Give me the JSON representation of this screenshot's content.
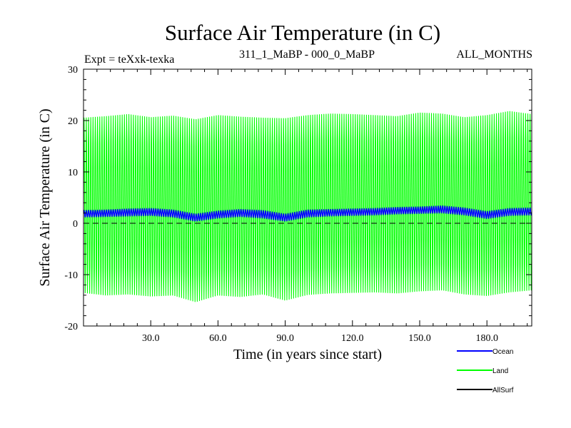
{
  "chart_data": {
    "type": "line",
    "title": "Surface Air Temperature (in C)",
    "subtitle_left": "Expt = teXxk-texka",
    "subtitle_center": "311_1_MaBP - 000_0_MaBP",
    "subtitle_right": "ALL_MONTHS",
    "xlabel": "Time (in years since start)",
    "ylabel": "Surface Air Temperature (in C)",
    "xlim": [
      0,
      200
    ],
    "ylim": [
      -20,
      30
    ],
    "x_ticks": [
      30,
      60,
      90,
      120,
      150,
      180
    ],
    "x_tick_labels": [
      "30.0",
      "60.0",
      "90.0",
      "120.0",
      "150.0",
      "180.0"
    ],
    "y_ticks": [
      -20,
      -10,
      0,
      10,
      20,
      30
    ],
    "y_tick_labels": [
      "-20",
      "-10",
      "0",
      "10",
      "20",
      "30"
    ],
    "reference_line": {
      "y": 0,
      "style": "dashed",
      "color": "#000000"
    },
    "series": [
      {
        "name": "Ocean",
        "color": "#0000ff",
        "kind": "seasonal-band",
        "x_start": 0,
        "x_end": 200,
        "cycle_years": 1,
        "envelope_x": [
          0,
          10,
          20,
          30,
          40,
          50,
          60,
          70,
          80,
          90,
          100,
          110,
          120,
          130,
          140,
          150,
          160,
          170,
          180,
          190,
          200
        ],
        "envelope_max": [
          2.5,
          2.6,
          2.8,
          2.9,
          2.6,
          1.8,
          2.4,
          2.7,
          2.5,
          1.8,
          2.6,
          2.7,
          2.8,
          2.9,
          3.1,
          3.2,
          3.4,
          3.0,
          2.3,
          2.9,
          3.0
        ],
        "envelope_min": [
          1.2,
          1.3,
          1.4,
          1.5,
          1.2,
          0.4,
          1.0,
          1.3,
          1.0,
          0.4,
          1.2,
          1.4,
          1.5,
          1.6,
          1.8,
          1.9,
          2.0,
          1.6,
          0.9,
          1.5,
          1.6
        ]
      },
      {
        "name": "Land",
        "color": "#00ff00",
        "kind": "seasonal-band",
        "x_start": 0,
        "x_end": 200,
        "cycle_years": 1,
        "envelope_x": [
          0,
          10,
          20,
          30,
          40,
          50,
          60,
          70,
          80,
          90,
          100,
          110,
          120,
          130,
          140,
          150,
          160,
          170,
          180,
          190,
          200
        ],
        "envelope_max": [
          20.5,
          20.8,
          21.2,
          20.6,
          20.9,
          20.2,
          21.0,
          20.7,
          20.5,
          20.4,
          21.0,
          21.3,
          21.2,
          21.0,
          20.8,
          21.5,
          21.3,
          20.6,
          21.0,
          21.8,
          21.2
        ],
        "envelope_min": [
          -13.5,
          -14.0,
          -13.8,
          -14.2,
          -14.0,
          -15.3,
          -14.0,
          -14.3,
          -13.8,
          -15.0,
          -13.9,
          -13.6,
          -13.5,
          -13.4,
          -13.6,
          -13.2,
          -13.0,
          -13.8,
          -14.1,
          -13.4,
          -13.0
        ]
      },
      {
        "name": "AllSurf",
        "color": "#000000",
        "kind": "legend-only"
      }
    ],
    "legend_position": "bottom-right"
  }
}
